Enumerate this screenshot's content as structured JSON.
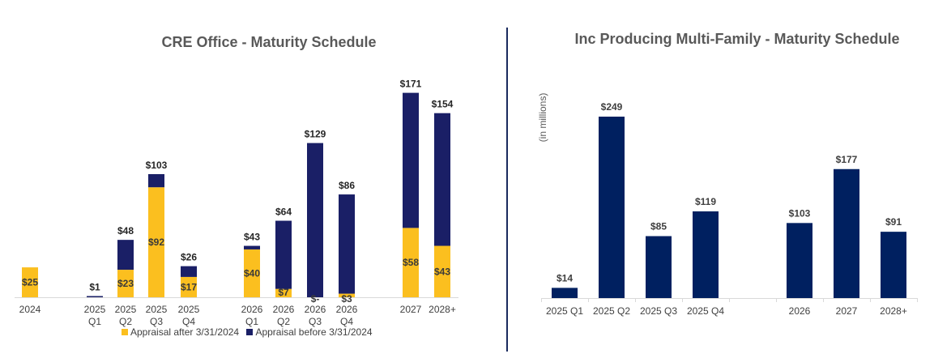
{
  "colors": {
    "after": "#FBBF1F",
    "before": "#1A1F66",
    "mf": "#002060"
  },
  "chart_data": [
    {
      "type": "bar",
      "stacked": true,
      "title": "CRE Office - Maturity Schedule",
      "categories": [
        "2024",
        "2025 Q1",
        "2025 Q2",
        "2025 Q3",
        "2025 Q4",
        "2026 Q1",
        "2026 Q2",
        "2026 Q3",
        "2026 Q4",
        "2027",
        "2028+"
      ],
      "series": [
        {
          "name": "Appraisal after 3/31/2024",
          "values": [
            25,
            0,
            23,
            92,
            17,
            40,
            7,
            0,
            3,
            58,
            43
          ]
        },
        {
          "name": "Appraisal before 3/31/2024",
          "values": [
            0,
            1,
            25,
            11,
            9,
            3,
            57,
            129,
            83,
            113,
            111
          ]
        }
      ],
      "totals": [
        25,
        1,
        48,
        103,
        26,
        43,
        64,
        129,
        86,
        171,
        154
      ],
      "total_labels": [
        "",
        "$1",
        "$48",
        "$103",
        "$26",
        "$43",
        "$64",
        "$129",
        "$86",
        "$171",
        "$154"
      ],
      "inner_labels": [
        "$25",
        "",
        "$23",
        "$92",
        "$17",
        "$40",
        "$7",
        "$-",
        "$3",
        "$58",
        "$43"
      ],
      "legend_position": "bottom"
    },
    {
      "type": "bar",
      "title": "Inc Producing Multi-Family - Maturity Schedule",
      "ylabel": "(in millions)",
      "categories": [
        "2025 Q1",
        "2025 Q2",
        "2025 Q3",
        "2025 Q4",
        "2026",
        "2027",
        "2028+"
      ],
      "values": [
        14,
        249,
        85,
        119,
        103,
        177,
        91
      ],
      "labels": [
        "$14",
        "$249",
        "$85",
        "$119",
        "$103",
        "$177",
        "$91"
      ]
    }
  ]
}
